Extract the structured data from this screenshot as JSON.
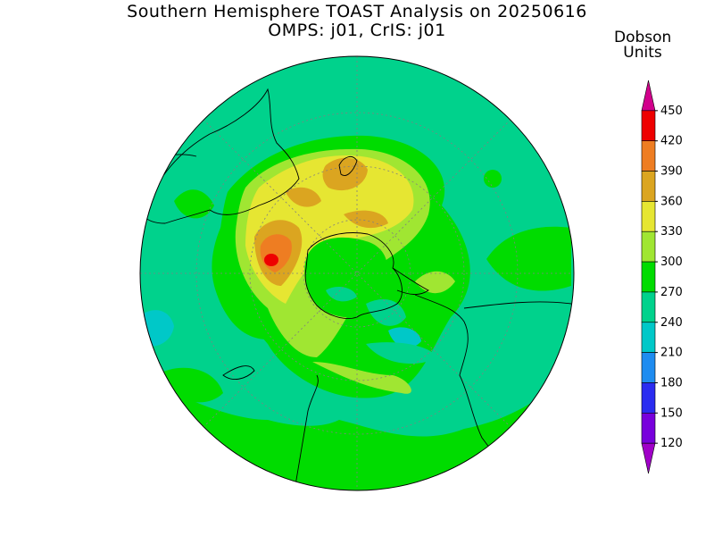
{
  "title": {
    "line1": "Southern Hemisphere TOAST Analysis on 20250616",
    "line2": "OMPS: j01, CrIS: j01"
  },
  "colorbar": {
    "title_line1": "Dobson",
    "title_line2": "Units",
    "levels": [
      {
        "label": "450",
        "color": "#d2008c"
      },
      {
        "label": "420",
        "color": "#ee0000"
      },
      {
        "label": "390",
        "color": "#ee7d22"
      },
      {
        "label": "360",
        "color": "#dba520"
      },
      {
        "label": "330",
        "color": "#e6e632"
      },
      {
        "label": "300",
        "color": "#a0e632"
      },
      {
        "label": "270",
        "color": "#00dc00"
      },
      {
        "label": "240",
        "color": "#00d28c"
      },
      {
        "label": "210",
        "color": "#00c8c8"
      },
      {
        "label": "180",
        "color": "#1e8cf0"
      },
      {
        "label": "150",
        "color": "#2a2cf0"
      },
      {
        "label": "120",
        "color": "#7800dc"
      },
      {
        "label": "",
        "color": "#a000c8"
      }
    ]
  },
  "map_colors": {
    "background": "#00d28c",
    "green": "#00dc00",
    "yellowgreen": "#a0e632",
    "yellow": "#e6e632",
    "goldenrod": "#dba520",
    "orange": "#ee7d22",
    "red": "#ee0000",
    "cyan": "#00c8c8"
  }
}
